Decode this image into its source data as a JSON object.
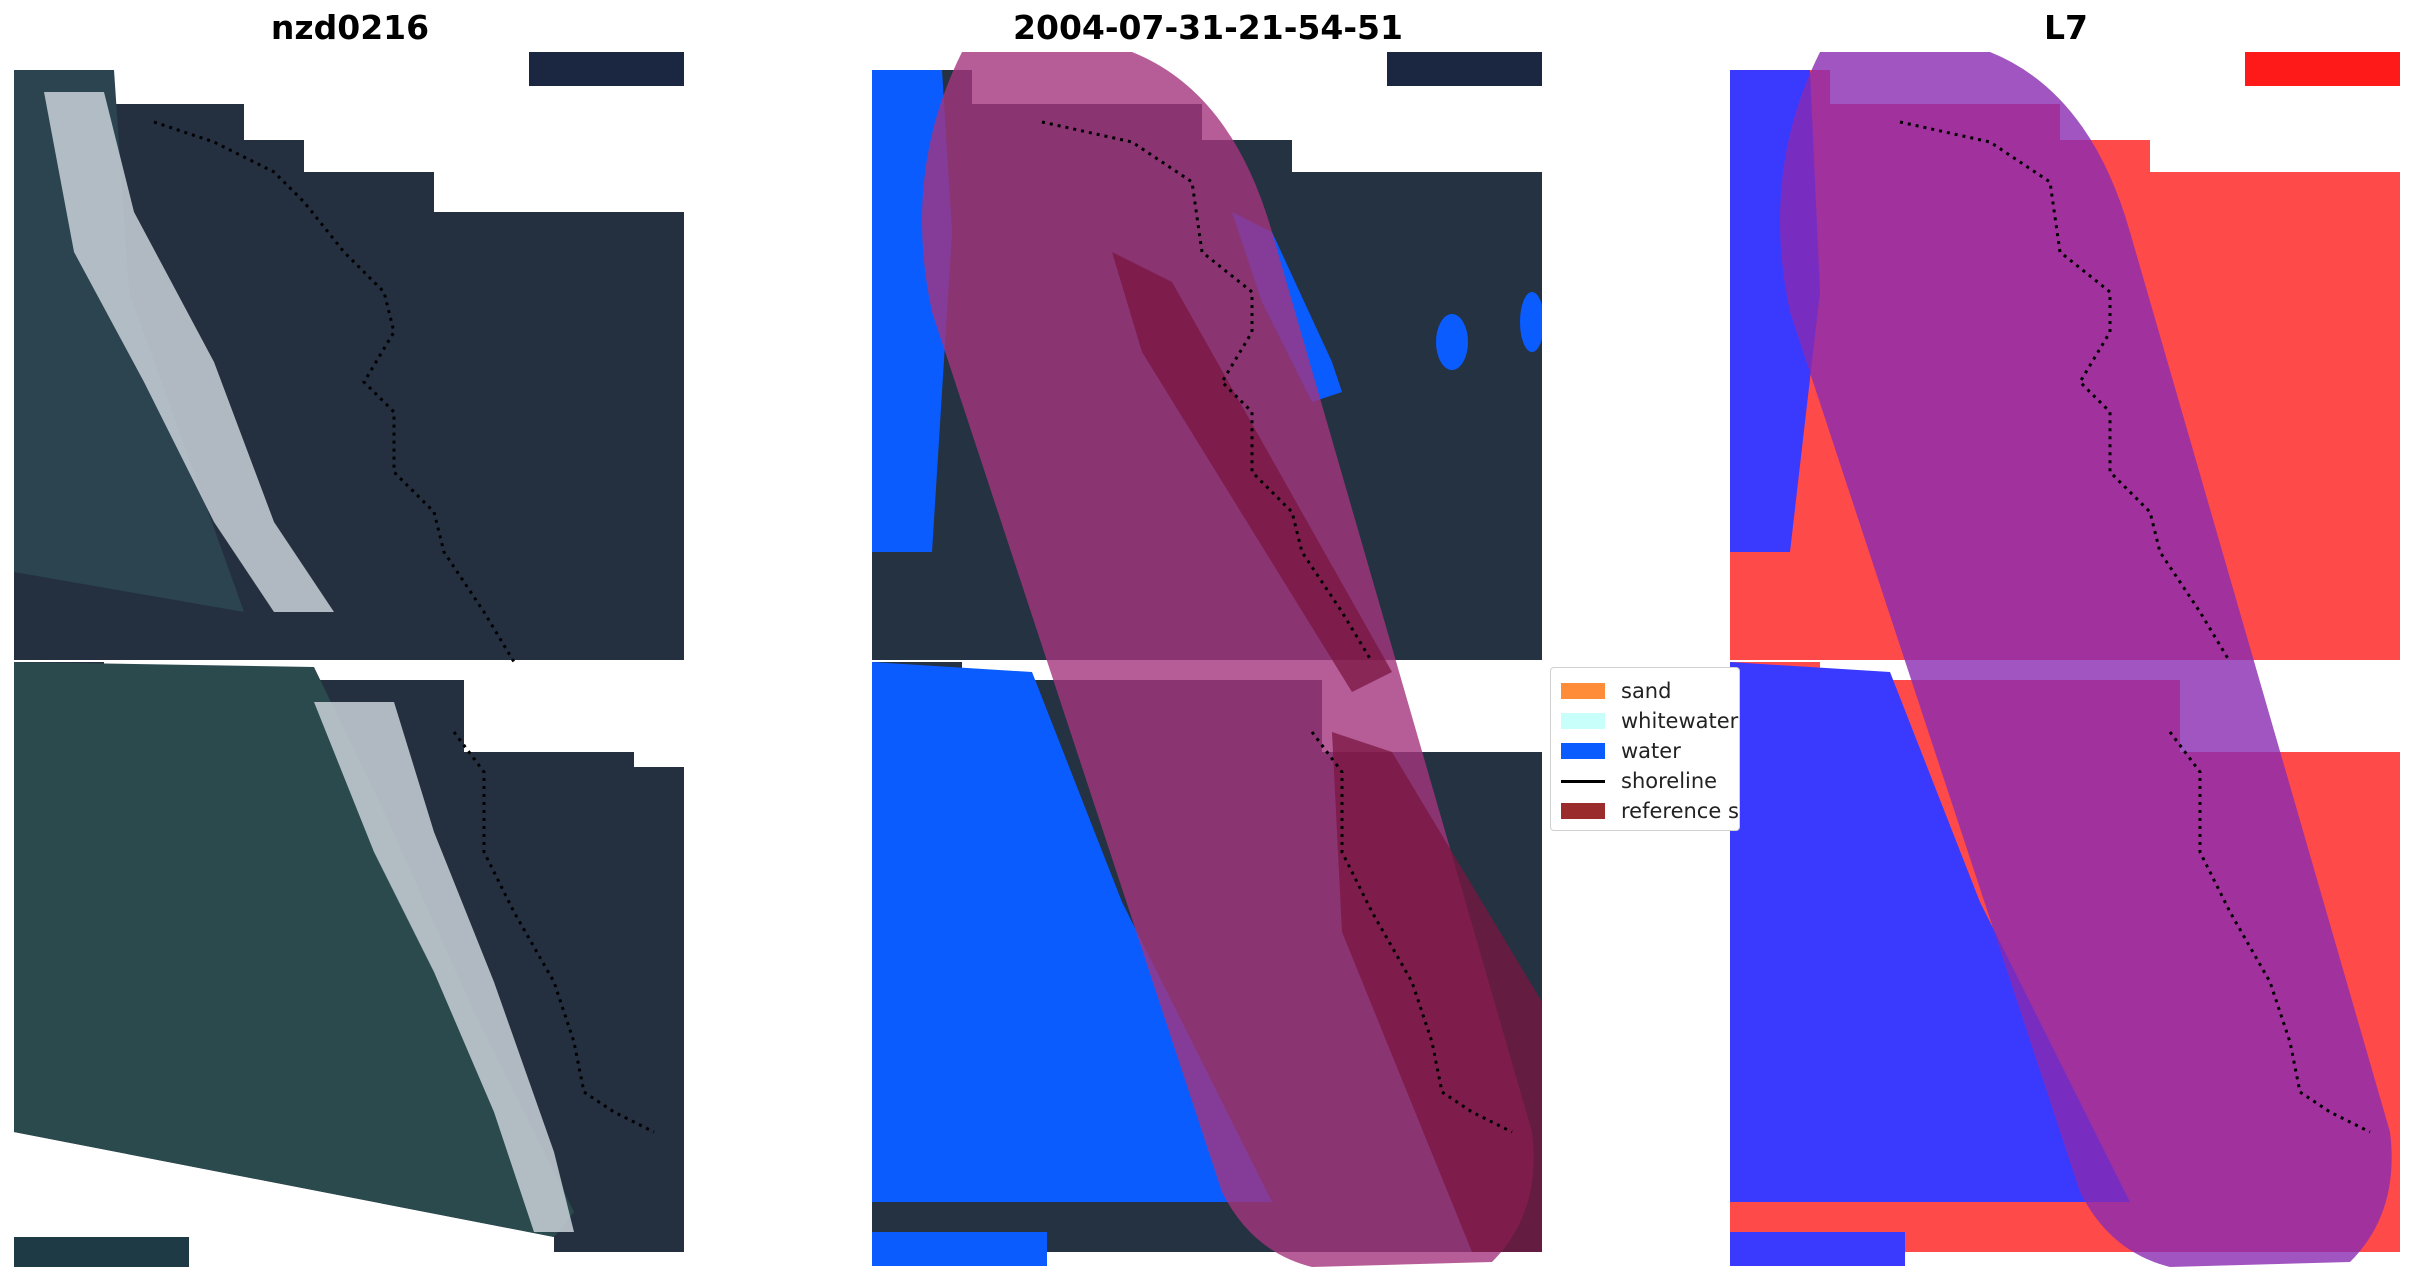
{
  "panels": [
    {
      "title": "nzd0216"
    },
    {
      "title": "2004-07-31-21-54-51"
    },
    {
      "title": "L7"
    }
  ],
  "legend": {
    "items": [
      {
        "label": "sand",
        "kind": "patch",
        "color": "#ff8c38"
      },
      {
        "label": "whitewater",
        "kind": "patch",
        "color": "#c8fffb"
      },
      {
        "label": "water",
        "kind": "patch",
        "color": "#0a5cff"
      },
      {
        "label": "shoreline",
        "kind": "line",
        "color": "#000000"
      },
      {
        "label": "reference shoreline buffer",
        "kind": "patch",
        "color": "#9b2c2c"
      }
    ]
  },
  "colors": {
    "land": "#243242",
    "land_dark": "#1b2433",
    "surf": "#d8e0e6",
    "water": "#2e4a52",
    "water_class": "#0a5cff",
    "buffer": "#b0407e",
    "land_index": "#ff4a4a",
    "water_index": "#3a3aff"
  }
}
